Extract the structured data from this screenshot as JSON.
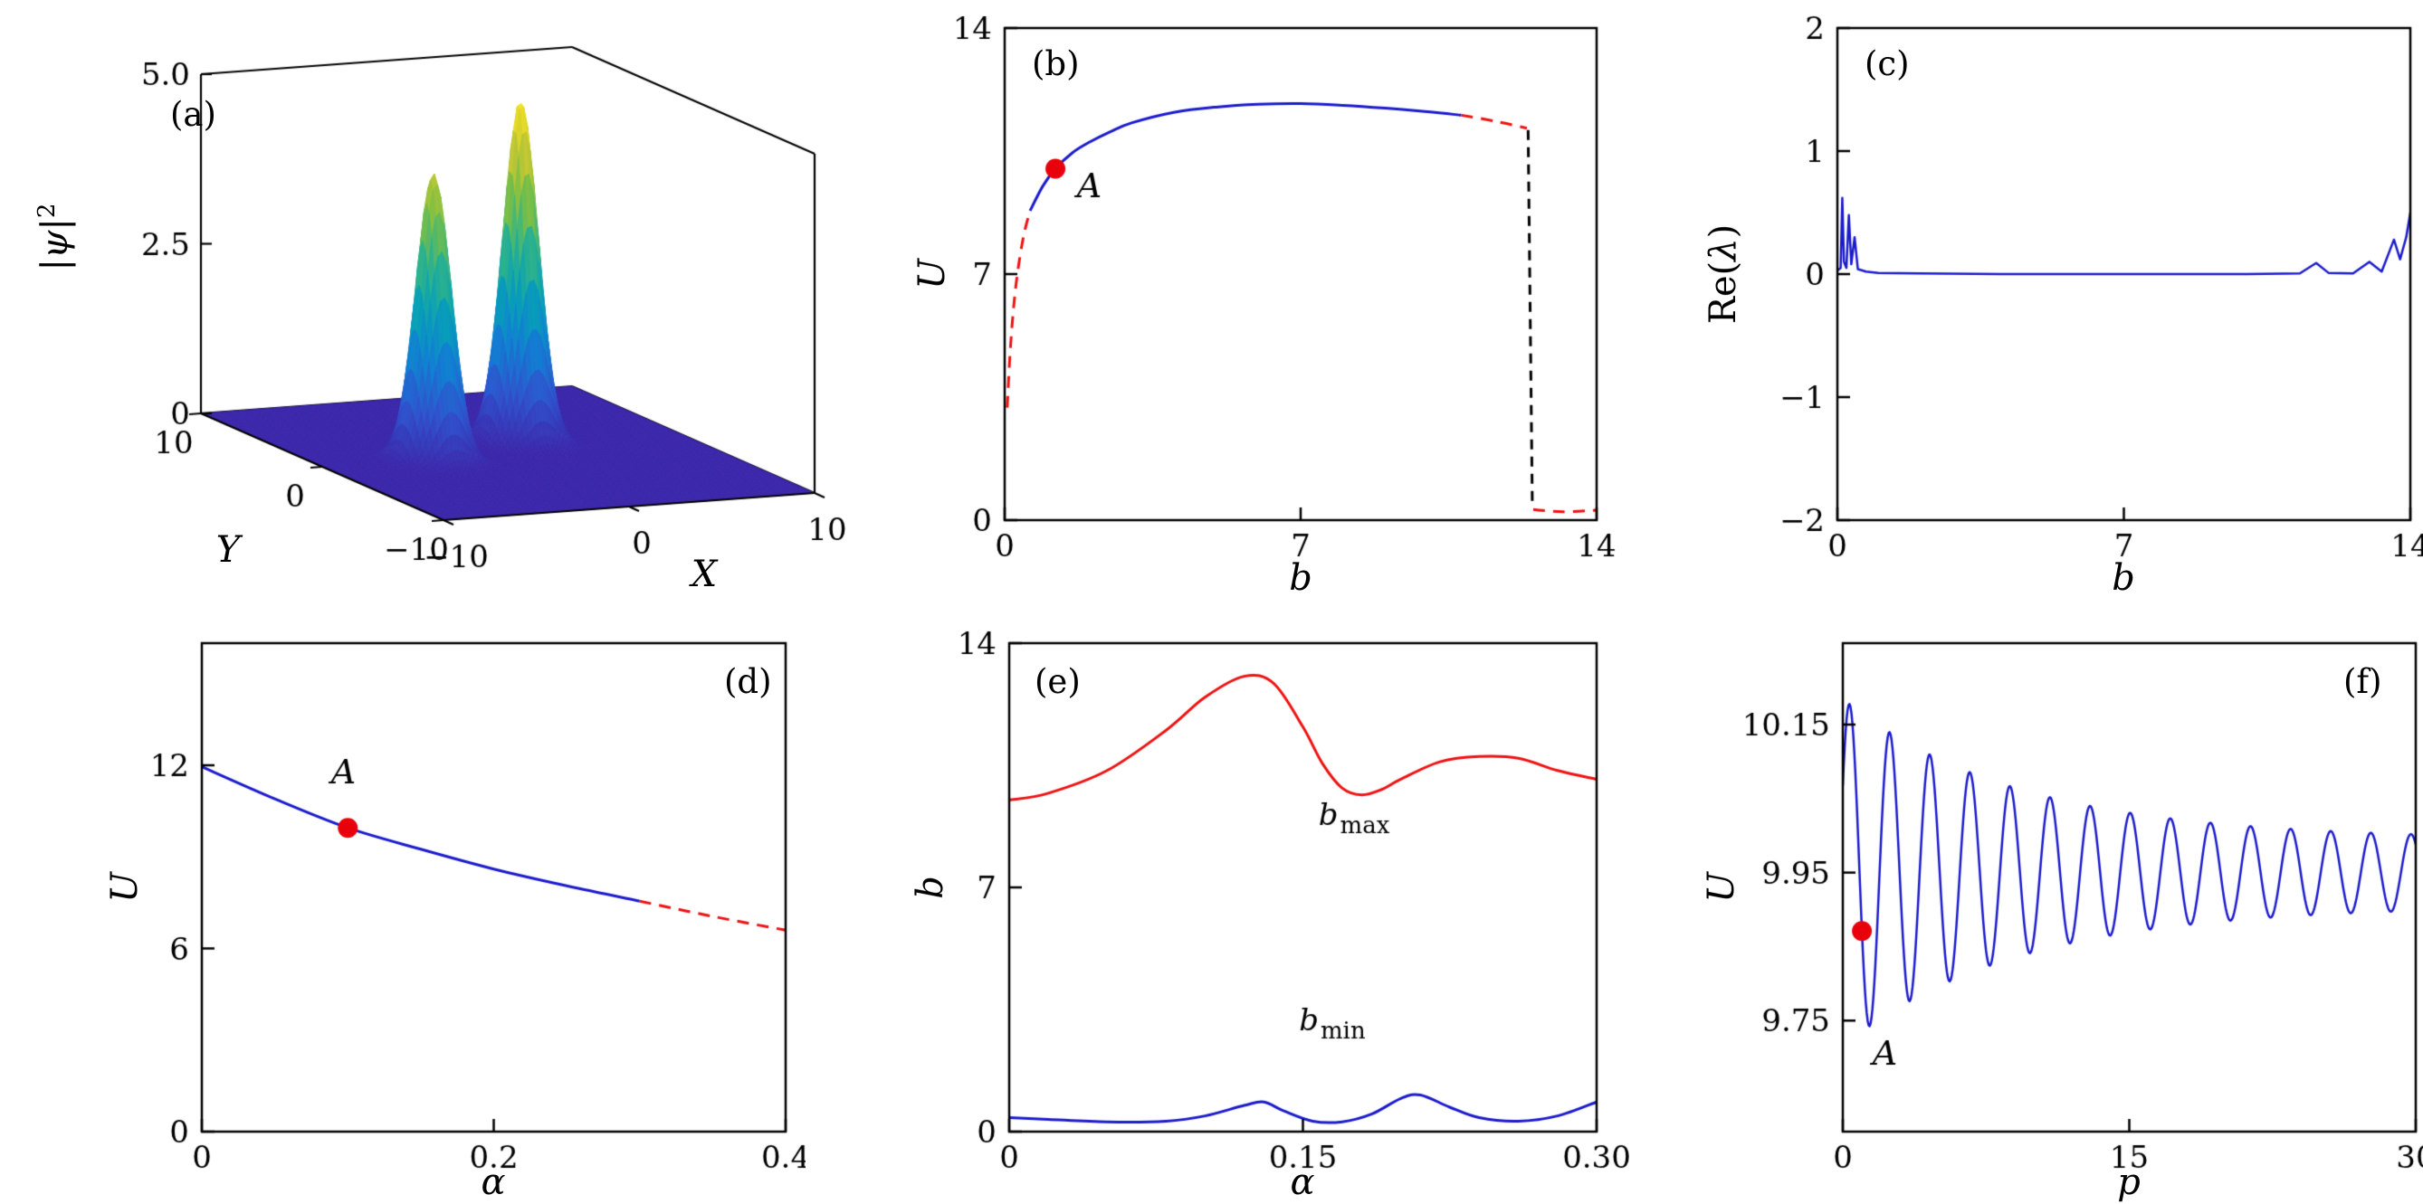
{
  "figure": {
    "background": "#ffffff"
  },
  "colors": {
    "blue": "#1a1acd",
    "red": "#ee1111",
    "black": "#000000",
    "marker": "#e8000b"
  },
  "chart_data": [
    {
      "id": "a",
      "type": "surface3d",
      "title": "(a)",
      "xlabel": "X",
      "ylabel": "Y",
      "zlabel_base": "|ψ|",
      "zlabel_sup": "2",
      "xlim": [
        -10,
        10
      ],
      "ylim": [
        -10,
        10
      ],
      "zlim": [
        0,
        5
      ],
      "xticks": [
        {
          "v": -10,
          "t": "−10"
        },
        {
          "v": 0,
          "t": "0"
        },
        {
          "v": 10,
          "t": "10"
        }
      ],
      "yticks": [
        {
          "v": 10,
          "t": "10"
        },
        {
          "v": 0,
          "t": "0"
        },
        {
          "v": -10,
          "t": "−10"
        }
      ],
      "zticks": [
        {
          "v": 0,
          "t": "0"
        },
        {
          "v": 2.5,
          "t": "2.5"
        },
        {
          "v": 5,
          "t": "5.0"
        }
      ],
      "peaks": [
        {
          "x": -4,
          "y": 0,
          "h": 4.2,
          "s": 0.8
        },
        {
          "x": 2,
          "y": 2,
          "h": 5.0,
          "s": 0.8
        }
      ],
      "colormap": [
        [
          0,
          "#3b27aa"
        ],
        [
          0.14,
          "#3152cd"
        ],
        [
          0.29,
          "#127fd3"
        ],
        [
          0.43,
          "#07a0b8"
        ],
        [
          0.57,
          "#2fb38a"
        ],
        [
          0.71,
          "#7cbf45"
        ],
        [
          0.85,
          "#c6c832"
        ],
        [
          1,
          "#f9e721"
        ]
      ]
    },
    {
      "id": "b",
      "type": "line",
      "title": "(b)",
      "xlabel": "b",
      "ylabel": "U",
      "xlim": [
        0,
        14
      ],
      "ylim": [
        0,
        14
      ],
      "xticks": [
        {
          "v": 0,
          "t": "0"
        },
        {
          "v": 7,
          "t": "7"
        },
        {
          "v": 14,
          "t": "14"
        }
      ],
      "yticks": [
        {
          "v": 0,
          "t": "0"
        },
        {
          "v": 7,
          "t": "7"
        },
        {
          "v": 14,
          "t": "14"
        }
      ],
      "segments": [
        {
          "name": "unstable-low-b",
          "color": "red",
          "style": "dashed",
          "smooth": true,
          "pts": [
            [
              0.06,
              3.2
            ],
            [
              0.12,
              4.6
            ],
            [
              0.2,
              5.9
            ],
            [
              0.3,
              7.0
            ],
            [
              0.45,
              8.1
            ],
            [
              0.6,
              8.8
            ]
          ]
        },
        {
          "name": "stable-branch",
          "color": "blue",
          "style": "solid",
          "smooth": true,
          "pts": [
            [
              0.6,
              8.8
            ],
            [
              0.9,
              9.5
            ],
            [
              1.2,
              10.0
            ],
            [
              1.6,
              10.45
            ],
            [
              2.0,
              10.75
            ],
            [
              2.5,
              11.05
            ],
            [
              3.0,
              11.3
            ],
            [
              4.0,
              11.6
            ],
            [
              5.0,
              11.75
            ],
            [
              6.0,
              11.83
            ],
            [
              7.0,
              11.85
            ],
            [
              8.0,
              11.8
            ],
            [
              9.0,
              11.72
            ],
            [
              10.0,
              11.62
            ],
            [
              10.8,
              11.52
            ]
          ]
        },
        {
          "name": "unstable-high-b",
          "color": "red",
          "style": "dashed",
          "smooth": true,
          "pts": [
            [
              10.8,
              11.52
            ],
            [
              11.6,
              11.35
            ],
            [
              12.35,
              11.15
            ]
          ]
        },
        {
          "name": "collapse-jump",
          "color": "black",
          "style": "dashed",
          "smooth": false,
          "pts": [
            [
              12.38,
              11.1
            ],
            [
              12.48,
              0.35
            ]
          ]
        },
        {
          "name": "low-branch",
          "color": "red",
          "style": "dashed",
          "smooth": true,
          "pts": [
            [
              12.5,
              0.3
            ],
            [
              13.2,
              0.24
            ],
            [
              14,
              0.28
            ]
          ]
        }
      ],
      "markers": [
        {
          "label": "A",
          "x": 1.2,
          "y": 10.0
        }
      ],
      "annotations": [
        {
          "text": "A",
          "italic": true,
          "x": 2.0,
          "y": 9.2
        }
      ]
    },
    {
      "id": "c",
      "type": "line",
      "title": "(c)",
      "xlabel": "b",
      "ylabel_pre": "Re(",
      "ylabel_sym": "λ",
      "ylabel_post": ")",
      "xlim": [
        0,
        14
      ],
      "ylim": [
        -2,
        2
      ],
      "xticks": [
        {
          "v": 0,
          "t": "0"
        },
        {
          "v": 7,
          "t": "7"
        },
        {
          "v": 14,
          "t": "14"
        }
      ],
      "yticks": [
        {
          "v": -2,
          "t": "−2"
        },
        {
          "v": -1,
          "t": "−1"
        },
        {
          "v": 0,
          "t": "0"
        },
        {
          "v": 1,
          "t": "1"
        },
        {
          "v": 2,
          "t": "2"
        }
      ],
      "segments": [
        {
          "name": "growth-rate",
          "color": "blue",
          "style": "solid",
          "smooth": false,
          "lw": 2.5,
          "pts": [
            [
              0,
              0.03
            ],
            [
              0.08,
              0.05
            ],
            [
              0.12,
              0.62
            ],
            [
              0.16,
              0.1
            ],
            [
              0.22,
              0.05
            ],
            [
              0.28,
              0.48
            ],
            [
              0.34,
              0.08
            ],
            [
              0.42,
              0.3
            ],
            [
              0.5,
              0.04
            ],
            [
              0.7,
              0.02
            ],
            [
              1,
              0.01
            ],
            [
              2,
              0.005
            ],
            [
              4,
              0
            ],
            [
              6,
              0
            ],
            [
              8,
              0
            ],
            [
              10,
              0
            ],
            [
              11.3,
              0.005
            ],
            [
              11.7,
              0.09
            ],
            [
              12.0,
              0.01
            ],
            [
              12.6,
              0.005
            ],
            [
              13.0,
              0.1
            ],
            [
              13.3,
              0.02
            ],
            [
              13.6,
              0.28
            ],
            [
              13.75,
              0.12
            ],
            [
              13.9,
              0.3
            ],
            [
              14,
              0.5
            ]
          ]
        }
      ]
    },
    {
      "id": "d",
      "type": "line",
      "title": "(d)",
      "xlabel": "α",
      "ylabel": "U",
      "xlim": [
        0,
        0.4
      ],
      "ylim": [
        0,
        16
      ],
      "xticks": [
        {
          "v": 0,
          "t": "0"
        },
        {
          "v": 0.2,
          "t": "0.2"
        },
        {
          "v": 0.4,
          "t": "0.4"
        }
      ],
      "yticks": [
        {
          "v": 0,
          "t": "0"
        },
        {
          "v": 6,
          "t": "6"
        },
        {
          "v": 12,
          "t": "12"
        }
      ],
      "segments": [
        {
          "name": "stable",
          "color": "blue",
          "style": "solid",
          "smooth": true,
          "pts": [
            [
              0,
              11.95
            ],
            [
              0.05,
              10.9
            ],
            [
              0.1,
              9.95
            ],
            [
              0.15,
              9.25
            ],
            [
              0.2,
              8.6
            ],
            [
              0.25,
              8.05
            ],
            [
              0.3,
              7.55
            ]
          ]
        },
        {
          "name": "unstable",
          "color": "red",
          "style": "dashed",
          "smooth": true,
          "pts": [
            [
              0.3,
              7.55
            ],
            [
              0.35,
              7.05
            ],
            [
              0.4,
              6.6
            ]
          ]
        }
      ],
      "markers": [
        {
          "label": "A",
          "x": 0.1,
          "y": 9.95
        }
      ],
      "annotations": [
        {
          "text": "A",
          "italic": true,
          "x": 0.097,
          "y": 11.4
        }
      ]
    },
    {
      "id": "e",
      "type": "line",
      "title": "(e)",
      "xlabel": "α",
      "ylabel": "b",
      "xlim": [
        0,
        0.3
      ],
      "ylim": [
        0,
        14
      ],
      "xticks": [
        {
          "v": 0,
          "t": "0"
        },
        {
          "v": 0.15,
          "t": "0.15"
        },
        {
          "v": 0.3,
          "t": "0.30"
        }
      ],
      "yticks": [
        {
          "v": 0,
          "t": "0"
        },
        {
          "v": 7,
          "t": "7"
        },
        {
          "v": 14,
          "t": "14"
        }
      ],
      "segments": [
        {
          "name": "b-max",
          "color": "red",
          "style": "solid",
          "smooth": true,
          "pts": [
            [
              0,
              9.5
            ],
            [
              0.02,
              9.7
            ],
            [
              0.05,
              10.35
            ],
            [
              0.08,
              11.5
            ],
            [
              0.1,
              12.45
            ],
            [
              0.12,
              13.05
            ],
            [
              0.135,
              12.85
            ],
            [
              0.15,
              11.6
            ],
            [
              0.16,
              10.55
            ],
            [
              0.17,
              9.85
            ],
            [
              0.18,
              9.65
            ],
            [
              0.19,
              9.8
            ],
            [
              0.2,
              10.1
            ],
            [
              0.22,
              10.6
            ],
            [
              0.24,
              10.75
            ],
            [
              0.26,
              10.7
            ],
            [
              0.28,
              10.35
            ],
            [
              0.3,
              10.1
            ]
          ]
        },
        {
          "name": "b-min",
          "color": "blue",
          "style": "solid",
          "smooth": true,
          "pts": [
            [
              0,
              0.4
            ],
            [
              0.02,
              0.35
            ],
            [
              0.05,
              0.28
            ],
            [
              0.08,
              0.3
            ],
            [
              0.1,
              0.45
            ],
            [
              0.12,
              0.75
            ],
            [
              0.13,
              0.85
            ],
            [
              0.14,
              0.6
            ],
            [
              0.155,
              0.3
            ],
            [
              0.17,
              0.28
            ],
            [
              0.185,
              0.5
            ],
            [
              0.2,
              0.95
            ],
            [
              0.21,
              1.05
            ],
            [
              0.225,
              0.7
            ],
            [
              0.24,
              0.4
            ],
            [
              0.26,
              0.3
            ],
            [
              0.28,
              0.45
            ],
            [
              0.3,
              0.85
            ]
          ]
        }
      ],
      "annotations": [
        {
          "base": "b",
          "sub": "max",
          "x": 0.158,
          "y": 8.8
        },
        {
          "base": "b",
          "sub": "min",
          "x": 0.148,
          "y": 2.9
        }
      ]
    },
    {
      "id": "f",
      "type": "line",
      "title": "(f)",
      "xlabel": "p",
      "ylabel": "U",
      "xlim": [
        0,
        30
      ],
      "ylim": [
        9.6,
        10.26
      ],
      "xticks": [
        {
          "v": 0,
          "t": "0"
        },
        {
          "v": 15,
          "t": "15"
        },
        {
          "v": 30,
          "t": "30"
        }
      ],
      "yticks": [
        {
          "v": 9.75,
          "t": "9.75"
        },
        {
          "v": 9.95,
          "t": "9.95"
        },
        {
          "v": 10.15,
          "t": "10.15"
        }
      ],
      "generator": {
        "kind": "damped-oscillation",
        "center": 9.95,
        "A0": 0.19,
        "decay": 9,
        "Ainf": 0.045,
        "period": 2.1,
        "tmin": 1.4,
        "range": [
          0,
          30
        ]
      },
      "markers": [
        {
          "label": "A",
          "x": 1.0,
          "y": 9.871
        }
      ],
      "annotations": [
        {
          "text": "A",
          "italic": true,
          "x": 2.2,
          "y": 9.69
        }
      ]
    }
  ]
}
